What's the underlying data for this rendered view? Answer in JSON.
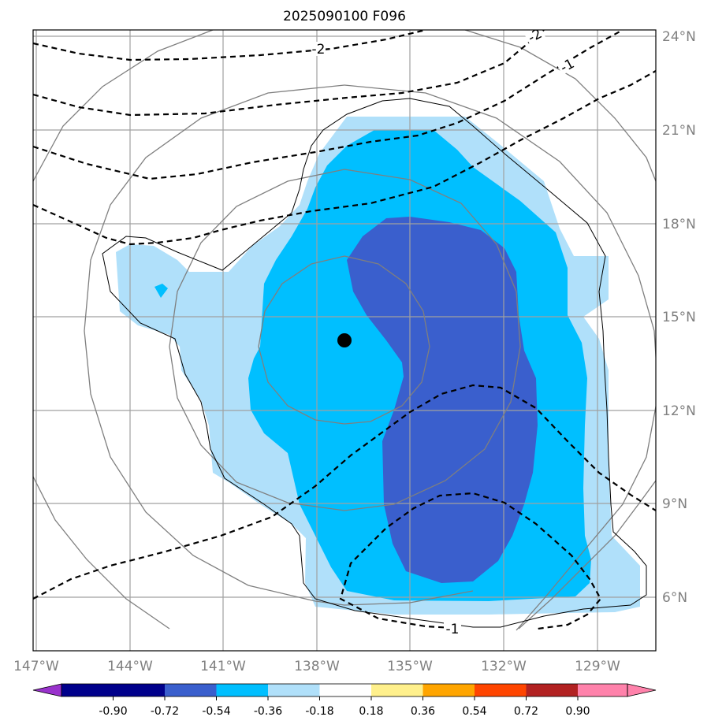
{
  "title": "2025090100 F096",
  "map": {
    "projection": "PlateCarree",
    "lon_range": [
      -147.3,
      -126.4
    ],
    "lat_range": [
      3.9,
      24.3
    ],
    "lon_ticks": [
      {
        "value": -147,
        "label": "147°W"
      },
      {
        "value": -144,
        "label": "144°W"
      },
      {
        "value": -141,
        "label": "141°W"
      },
      {
        "value": -138,
        "label": "138°W"
      },
      {
        "value": -135,
        "label": "135°W"
      },
      {
        "value": -132,
        "label": "132°W"
      },
      {
        "value": -129,
        "label": "129°W"
      }
    ],
    "lat_ticks": [
      {
        "value": 24,
        "label": "24°N"
      },
      {
        "value": 21,
        "label": "21°N"
      },
      {
        "value": 18,
        "label": "18°N"
      },
      {
        "value": 15,
        "label": "15°N"
      },
      {
        "value": 12,
        "label": "12°N"
      },
      {
        "value": 9,
        "label": "9°N"
      },
      {
        "value": 6,
        "label": "6°N"
      }
    ],
    "storm_center": {
      "lon": -137.1,
      "lat": 14.3,
      "marker": "black-dot"
    },
    "contour_labels": [
      {
        "text": "-2",
        "lon": -138.0,
        "lat": 23.4
      },
      {
        "text": "-2",
        "lon": -131.0,
        "lat": 24.0
      },
      {
        "text": "-1",
        "lon": -129.9,
        "lat": 22.9
      },
      {
        "text": "-1",
        "lon": -134.2,
        "lat": 4.6
      }
    ]
  },
  "colorbar": {
    "boundaries": [
      "-0.90",
      "-0.72",
      "-0.54",
      "-0.36",
      "-0.18",
      "0.18",
      "0.36",
      "0.54",
      "0.72",
      "0.90"
    ],
    "colors": [
      "#9932cc",
      "#00008b",
      "#3a5fcd",
      "#00bfff",
      "#b0e0fa",
      "#ffffff",
      "#fff08c",
      "#ffa500",
      "#ff4500",
      "#b22222",
      "#ff82ab"
    ],
    "extend": "both"
  },
  "fill_colors": {
    "light": "#b0e0fa",
    "mid": "#00bfff",
    "dark": "#3a5fcd"
  }
}
